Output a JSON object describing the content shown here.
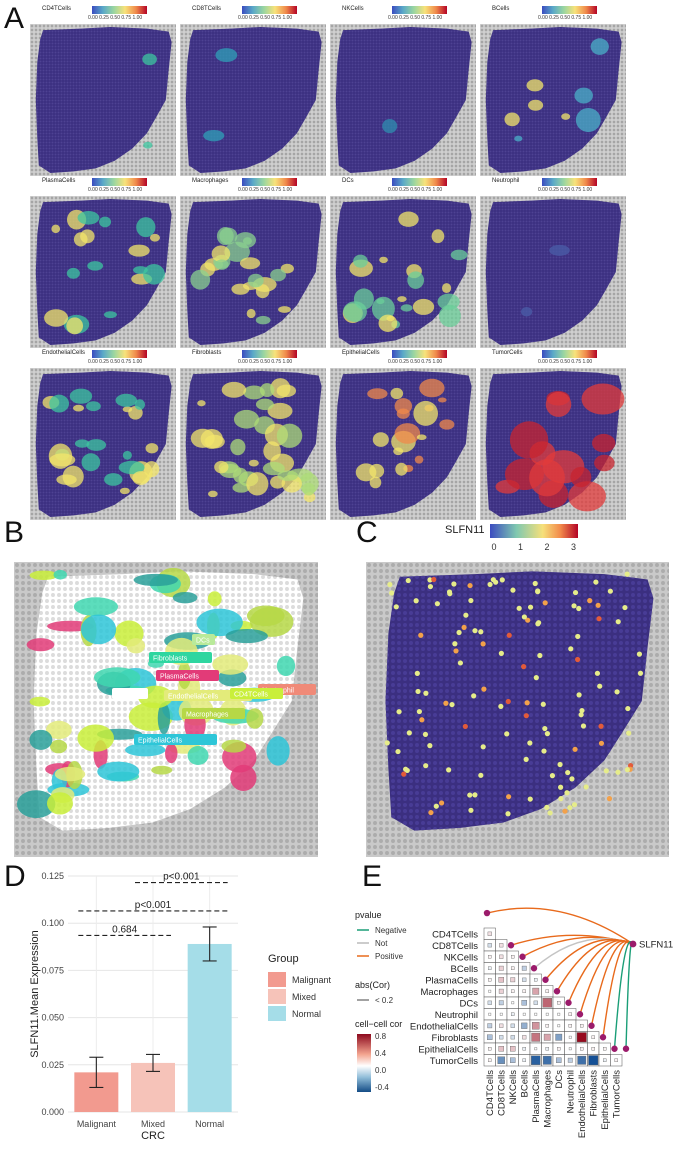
{
  "panels": {
    "A": "A",
    "B": "B",
    "C": "C",
    "D": "D",
    "E": "E"
  },
  "colors": {
    "tissue": "#3b2f80",
    "dotgrid": "#9a9a9a",
    "bg": "#c8c8c8",
    "yellow": "#f3e56b",
    "red": "#c8242f",
    "teal": "#2aa09a"
  },
  "panel_a": {
    "colorbar_ticks": [
      "0.00",
      "0.25",
      "0.50",
      "0.75",
      "1.00"
    ],
    "maps": [
      {
        "name": "CD4TCells"
      },
      {
        "name": "CD8TCells"
      },
      {
        "name": "NKCells"
      },
      {
        "name": "BCells"
      },
      {
        "name": "PlasmaCells"
      },
      {
        "name": "Macrophages"
      },
      {
        "name": "DCs"
      },
      {
        "name": "Neutrophil"
      },
      {
        "name": "EndothelialCells"
      },
      {
        "name": "Fibroblasts"
      },
      {
        "name": "EpithelialCells"
      },
      {
        "name": "TumorCells"
      }
    ]
  },
  "panel_b": {
    "labels": [
      {
        "text": "DCs",
        "color": "#b9ea9a"
      },
      {
        "text": "Fibroblasts",
        "color": "#2fd6a0"
      },
      {
        "text": "PlasmaCells",
        "color": "#e23b78"
      },
      {
        "text": "Neutrophil",
        "color": "#f08a78"
      },
      {
        "text": "",
        "color": "#ffffff"
      },
      {
        "text": "EndothelialCells",
        "color": "#e3eb7a"
      },
      {
        "text": "CD4TCells",
        "color": "#c9ef3a"
      },
      {
        "text": "Macrophages",
        "color": "#b6d846"
      },
      {
        "text": "EpithelialCells",
        "color": "#2ec6d8"
      }
    ]
  },
  "panel_c": {
    "legend_title": "SLFN11",
    "ticks": [
      "0",
      "1",
      "2",
      "3"
    ]
  },
  "chart_data": {
    "type": "bar",
    "title": "",
    "xlabel": "CRC",
    "ylabel": "SLFN11.Mean Expression",
    "categories": [
      "Malignant",
      "Mixed",
      "Normal"
    ],
    "values": [
      0.021,
      0.026,
      0.089
    ],
    "errors": [
      0.008,
      0.0045,
      0.009
    ],
    "bar_colors": [
      "#f29a8f",
      "#f6c3b9",
      "#a5dde8"
    ],
    "ylim": [
      0,
      0.125
    ],
    "yticks": [
      "0.000",
      "0.025",
      "0.050",
      "0.075",
      "0.100",
      "0.125"
    ],
    "comparisons": [
      {
        "pair": [
          "Malignant",
          "Mixed"
        ],
        "label": "0.684"
      },
      {
        "pair": [
          "Malignant",
          "Normal"
        ],
        "label": "p<0.001"
      },
      {
        "pair": [
          "Mixed",
          "Normal"
        ],
        "label": "p<0.001"
      }
    ],
    "legend": {
      "title": "Group",
      "items": [
        "Malignant",
        "Mixed",
        "Normal"
      ]
    }
  },
  "panel_e": {
    "cells": [
      "CD4TCells",
      "CD8TCells",
      "NKCells",
      "BCells",
      "PlasmaCells",
      "Macrophages",
      "DCs",
      "Neutrophil",
      "EndothelialCells",
      "Fibroblasts",
      "EpithelialCells",
      "TumorCells"
    ],
    "target": "SLFN11",
    "pvalue_title": "pvalue",
    "pvalue_items": [
      {
        "label": "Negative",
        "color": "#1a9e77"
      },
      {
        "label": "Not",
        "color": "#bbbbbb"
      },
      {
        "label": "Positive",
        "color": "#e86a1c"
      }
    ],
    "abs_title": "abs(Cor)",
    "abs_item": "< 0.2",
    "cor_title": "cell−cell cor",
    "cor_ticks": [
      "0.8",
      "0.4",
      "0.0",
      "-0.4"
    ],
    "edges": [
      "Positive",
      "Positive",
      "Positive",
      "Not",
      "Positive",
      "Positive",
      "Positive",
      "Positive",
      "Positive",
      "Positive",
      "Negative",
      "Negative"
    ],
    "corr": [
      [
        0.1
      ],
      [
        -0.1,
        0.1
      ],
      [
        0.05,
        0.1,
        0.05
      ],
      [
        -0.05,
        0.15,
        0.05,
        -0.15
      ],
      [
        0.05,
        0.2,
        0.15,
        -0.1,
        -0.05
      ],
      [
        0.0,
        0.15,
        0.05,
        0.05,
        0.3,
        0.05
      ],
      [
        -0.1,
        -0.15,
        0.0,
        -0.2,
        -0.1,
        0.5,
        0.05
      ],
      [
        0.0,
        0.0,
        -0.05,
        0.0,
        0.0,
        0.0,
        0.0,
        0.05
      ],
      [
        -0.15,
        0.1,
        -0.1,
        -0.25,
        0.35,
        0.05,
        0.0,
        0.05,
        0.05
      ],
      [
        -0.2,
        -0.1,
        -0.1,
        0.1,
        0.45,
        0.3,
        -0.3,
        0.0,
        0.8,
        0.05
      ],
      [
        0.05,
        0.2,
        0.2,
        -0.05,
        0.0,
        -0.05,
        0.05,
        0.0,
        0.05,
        0.05,
        0.05
      ],
      [
        0.05,
        -0.35,
        -0.2,
        -0.05,
        -0.5,
        -0.45,
        -0.2,
        -0.15,
        -0.45,
        -0.55,
        -0.05,
        0.05
      ]
    ]
  }
}
